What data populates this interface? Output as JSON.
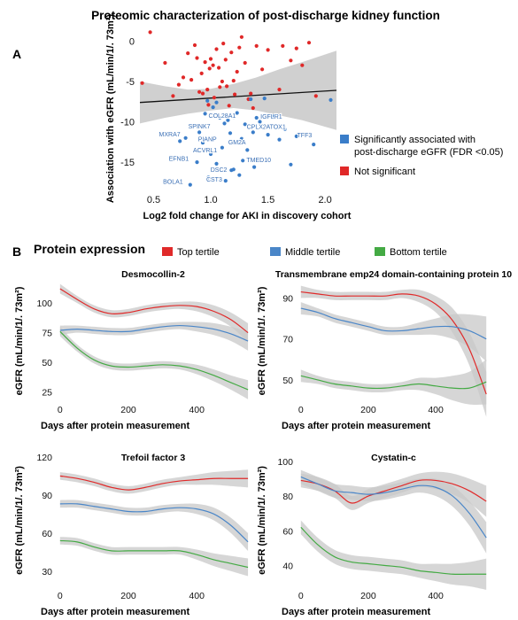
{
  "figure": {
    "title": "Proteomic characterization of post-discharge kidney function",
    "panel_a_letter": "A",
    "panel_b_letter": "B",
    "panel_b_heading": "Protein expression"
  },
  "colors": {
    "sig": "#3a7dc9",
    "nonsig": "#e02828",
    "top": "#e02a2a",
    "middle": "#4a86c8",
    "bottom": "#44aa44",
    "band": "#c8c8c8"
  },
  "chart_data": [
    {
      "type": "scatter",
      "title": "",
      "xlabel": "Log2 fold change for AKI in discovery cohort",
      "ylabel": "Association with eGFR (mL/min/1/. 73m²)",
      "xlim": [
        0.38,
        2.1
      ],
      "ylim": [
        -18.5,
        1.8
      ],
      "xticks": [
        0.5,
        1.0,
        1.5,
        2.0
      ],
      "xtick_labels": [
        "0.5",
        "1.0",
        "1.5",
        "2.0"
      ],
      "yticks": [
        0,
        -5,
        -10,
        -15
      ],
      "ytick_labels": [
        "0",
        "-5",
        "-10",
        "-15"
      ],
      "legend": [
        {
          "label": "Significantly associated with post-discharge eGFR (FDR <0.05)",
          "line1": "Significantly associated with",
          "line2": "post-discharge eGFR (FDR <0.05)",
          "color_key": "sig"
        },
        {
          "label": "Not significant",
          "line1": "Not significant",
          "line2": "",
          "color_key": "nonsig"
        }
      ],
      "fit_line": {
        "x": [
          0.38,
          2.1
        ],
        "y": [
          -7.6,
          -6.1
        ]
      },
      "band": {
        "x": [
          0.38,
          0.6,
          0.8,
          1.0,
          1.2,
          1.4,
          1.6,
          1.8,
          2.1
        ],
        "upper": [
          -5.0,
          -5.6,
          -6.0,
          -5.9,
          -5.3,
          -4.5,
          -3.5,
          -2.6,
          -1.2
        ],
        "lower": [
          -10.2,
          -9.5,
          -9.0,
          -8.6,
          -8.3,
          -8.6,
          -9.2,
          -9.8,
          -11.0
        ]
      },
      "series": [
        {
          "name": "Not significant",
          "color_key": "nonsig",
          "points": [
            [
              0.4,
              -5.2
            ],
            [
              0.47,
              1.1
            ],
            [
              0.6,
              -2.7
            ],
            [
              0.67,
              -6.8
            ],
            [
              0.72,
              -5.4
            ],
            [
              0.76,
              -4.5
            ],
            [
              0.8,
              -1.5
            ],
            [
              0.83,
              -4.8
            ],
            [
              0.86,
              -0.5
            ],
            [
              0.88,
              -2.1
            ],
            [
              0.9,
              -6.3
            ],
            [
              0.92,
              -4.0
            ],
            [
              0.93,
              -6.5
            ],
            [
              0.95,
              -2.6
            ],
            [
              0.97,
              -6.0
            ],
            [
              0.98,
              -7.9
            ],
            [
              0.99,
              -3.4
            ],
            [
              1.0,
              -2.2
            ],
            [
              1.02,
              -3.0
            ],
            [
              1.03,
              -7.0
            ],
            [
              1.05,
              -1.0
            ],
            [
              1.07,
              -3.3
            ],
            [
              1.08,
              -5.7
            ],
            [
              1.1,
              -5.0
            ],
            [
              1.11,
              -0.3
            ],
            [
              1.13,
              -2.3
            ],
            [
              1.14,
              -5.6
            ],
            [
              1.16,
              -8.0
            ],
            [
              1.18,
              -1.4
            ],
            [
              1.2,
              -4.9
            ],
            [
              1.21,
              -6.6
            ],
            [
              1.23,
              -3.8
            ],
            [
              1.25,
              -0.8
            ],
            [
              1.27,
              0.5
            ],
            [
              1.3,
              -2.7
            ],
            [
              1.33,
              -7.2
            ],
            [
              1.35,
              -6.5
            ],
            [
              1.37,
              -8.3
            ],
            [
              1.4,
              -0.6
            ],
            [
              1.45,
              -3.5
            ],
            [
              1.5,
              -1.1
            ],
            [
              1.6,
              -6.0
            ],
            [
              1.63,
              -0.6
            ],
            [
              1.7,
              -2.4
            ],
            [
              1.75,
              -0.9
            ],
            [
              1.8,
              -3.0
            ],
            [
              1.86,
              -0.2
            ],
            [
              1.92,
              -6.8
            ]
          ]
        },
        {
          "name": "Significantly associated with post-discharge eGFR (FDR <0.05)",
          "color_key": "sig",
          "points": [
            [
              0.97,
              -7.4
            ],
            [
              1.02,
              -8.2
            ],
            [
              1.05,
              -7.6
            ],
            [
              1.08,
              -9.5
            ],
            [
              1.12,
              -10.2
            ],
            [
              1.15,
              -9.8
            ],
            [
              1.17,
              -11.4
            ],
            [
              1.2,
              -9.4
            ],
            [
              1.23,
              -8.9
            ],
            [
              1.27,
              -12.1
            ],
            [
              1.3,
              -10.3
            ],
            [
              1.32,
              -13.5
            ],
            [
              1.35,
              -7.2
            ],
            [
              1.37,
              -11.3
            ],
            [
              1.4,
              -9.5
            ],
            [
              1.43,
              -10.0
            ],
            [
              1.47,
              -7.1
            ],
            [
              1.5,
              -11.6
            ],
            [
              1.55,
              -9.3
            ],
            [
              1.6,
              -12.2
            ],
            [
              1.65,
              -10.9
            ],
            [
              1.7,
              -15.3
            ],
            [
              1.75,
              -11.8
            ],
            [
              1.9,
              -12.8
            ],
            [
              2.05,
              -7.3
            ],
            [
              0.88,
              -15.0
            ],
            [
              0.9,
              -11.3
            ],
            [
              0.93,
              -12.6
            ],
            [
              1.0,
              -14.0
            ],
            [
              1.1,
              -13.2
            ],
            [
              1.2,
              -15.9
            ],
            [
              1.25,
              -16.6
            ],
            [
              0.98,
              -16.9
            ],
            [
              0.82,
              -17.8
            ],
            [
              0.78,
              -12.0
            ],
            [
              0.73,
              -12.4
            ],
            [
              1.28,
              -14.8
            ],
            [
              1.38,
              -15.6
            ],
            [
              1.13,
              -17.3
            ],
            [
              1.18,
              -16.0
            ],
            [
              1.05,
              -15.2
            ],
            [
              0.95,
              -9.0
            ]
          ]
        }
      ],
      "gene_labels": [
        {
          "text": "COL28A1",
          "x": 1.1,
          "y": -9.5
        },
        {
          "text": "IGFLR1",
          "x": 1.53,
          "y": -9.6
        },
        {
          "text": "SPINK7",
          "x": 0.9,
          "y": -10.8
        },
        {
          "text": "CPLX2",
          "x": 1.4,
          "y": -10.9
        },
        {
          "text": "ATOX1",
          "x": 1.57,
          "y": -10.9
        },
        {
          "text": "MXRA7",
          "x": 0.64,
          "y": -11.8
        },
        {
          "text": "TFF3",
          "x": 1.82,
          "y": -11.9
        },
        {
          "text": "PIANP",
          "x": 0.97,
          "y": -12.4
        },
        {
          "text": "GM2A",
          "x": 1.23,
          "y": -12.8
        },
        {
          "text": "ACVRL1",
          "x": 0.95,
          "y": -13.8
        },
        {
          "text": "EFNB1",
          "x": 0.72,
          "y": -14.8
        },
        {
          "text": "TMED10",
          "x": 1.42,
          "y": -15.0
        },
        {
          "text": "DSC2",
          "x": 1.07,
          "y": -16.2
        },
        {
          "text": "CST3",
          "x": 1.03,
          "y": -17.4
        },
        {
          "text": "BOLA1",
          "x": 0.67,
          "y": -17.7
        }
      ]
    },
    {
      "type": "line",
      "title": "Desmocollin-2",
      "xlabel": "Days after protein measurement",
      "ylabel": "eGFR (mL/min/1/. 73m²)",
      "xlim": [
        -10,
        555
      ],
      "ylim": [
        18,
        118
      ],
      "xticks": [
        0,
        200,
        400
      ],
      "yticks": [
        100,
        75,
        50,
        25
      ],
      "x": [
        0,
        50,
        100,
        150,
        200,
        250,
        300,
        350,
        400,
        450,
        500,
        550
      ],
      "series": [
        {
          "name": "Top tertile",
          "color_key": "top",
          "values": [
            112,
            103,
            95,
            91,
            92,
            95,
            97,
            98,
            97,
            93,
            86,
            75
          ],
          "band": [
            4,
            3,
            3,
            3,
            3,
            3,
            3,
            3,
            4,
            5,
            6,
            8
          ]
        },
        {
          "name": "Middle tertile",
          "color_key": "middle",
          "values": [
            77,
            78,
            77,
            76,
            76,
            78,
            80,
            81,
            80,
            78,
            74,
            68
          ],
          "band": [
            4,
            3,
            3,
            3,
            3,
            3,
            3,
            3,
            4,
            5,
            6,
            8
          ]
        },
        {
          "name": "Bottom tertile",
          "color_key": "bottom",
          "values": [
            76,
            62,
            52,
            47,
            46,
            47,
            48,
            47,
            44,
            39,
            33,
            27
          ],
          "band": [
            4,
            3,
            3,
            3,
            3,
            3,
            3,
            3,
            4,
            5,
            6,
            8
          ]
        }
      ]
    },
    {
      "type": "line",
      "title": "Transmembrane emp24 domain-containing protein 10",
      "xlabel": "Days after protein measurement",
      "ylabel": "eGFR (mL/min/1/. 73m²)",
      "xlim": [
        -10,
        560
      ],
      "ylim": [
        40,
        98
      ],
      "xticks": [
        0,
        200,
        400
      ],
      "yticks": [
        90,
        70,
        50
      ],
      "x": [
        0,
        50,
        100,
        150,
        200,
        250,
        300,
        350,
        400,
        450,
        500,
        550
      ],
      "series": [
        {
          "name": "Top tertile",
          "color_key": "top",
          "values": [
            93,
            92,
            91,
            91,
            91,
            91,
            92,
            91,
            87,
            79,
            65,
            43
          ],
          "band": [
            3,
            2,
            2,
            2,
            2,
            2,
            2,
            3,
            4,
            6,
            8,
            11
          ]
        },
        {
          "name": "Middle tertile",
          "color_key": "middle",
          "values": [
            85,
            83,
            80,
            78,
            76,
            74,
            74,
            75,
            76,
            76,
            74,
            70
          ],
          "band": [
            3,
            2,
            2,
            2,
            2,
            2,
            2,
            3,
            4,
            6,
            8,
            11
          ]
        },
        {
          "name": "Bottom tertile",
          "color_key": "bottom",
          "values": [
            52,
            50,
            48,
            47,
            46,
            46,
            47,
            48,
            47,
            46,
            46,
            49
          ],
          "band": [
            3,
            2,
            2,
            2,
            2,
            2,
            2,
            3,
            4,
            6,
            8,
            11
          ]
        }
      ]
    },
    {
      "type": "line",
      "title": "Trefoil factor 3",
      "xlabel": "Days after protein measurement",
      "ylabel": "eGFR (mL/min/1/. 73m²)",
      "xlim": [
        -10,
        555
      ],
      "ylim": [
        18,
        122
      ],
      "xticks": [
        0,
        200,
        400
      ],
      "yticks": [
        120,
        90,
        60,
        30
      ],
      "x": [
        0,
        50,
        100,
        150,
        200,
        250,
        300,
        350,
        400,
        450,
        500,
        550
      ],
      "series": [
        {
          "name": "Top tertile",
          "color_key": "top",
          "values": [
            105,
            103,
            100,
            96,
            94,
            96,
            99,
            101,
            102,
            103,
            103,
            103
          ],
          "band": [
            3,
            3,
            3,
            3,
            3,
            3,
            3,
            3,
            4,
            5,
            6,
            7
          ]
        },
        {
          "name": "Middle tertile",
          "color_key": "middle",
          "values": [
            83,
            83,
            81,
            79,
            77,
            77,
            79,
            80,
            79,
            75,
            66,
            53
          ],
          "band": [
            3,
            3,
            3,
            3,
            3,
            3,
            3,
            3,
            4,
            5,
            6,
            7
          ]
        },
        {
          "name": "Bottom tertile",
          "color_key": "bottom",
          "values": [
            54,
            53,
            49,
            46,
            46,
            46,
            46,
            46,
            43,
            39,
            36,
            33
          ],
          "band": [
            3,
            3,
            3,
            3,
            3,
            3,
            3,
            3,
            4,
            5,
            6,
            7
          ]
        }
      ]
    },
    {
      "type": "line",
      "title": "Cystatin-c",
      "xlabel": "Days after protein measurement",
      "ylabel": "eGFR (mL/min/1/. 73m²)",
      "xlim": [
        -10,
        560
      ],
      "ylim": [
        28,
        104
      ],
      "xticks": [
        0,
        200,
        400
      ],
      "yticks": [
        100,
        80,
        60,
        40
      ],
      "x": [
        0,
        50,
        100,
        150,
        200,
        250,
        300,
        350,
        400,
        450,
        500,
        550
      ],
      "series": [
        {
          "name": "Top tertile",
          "color_key": "top",
          "values": [
            89,
            87,
            83,
            76,
            80,
            83,
            86,
            89,
            89,
            87,
            83,
            77
          ],
          "band": [
            4,
            4,
            4,
            4,
            4,
            4,
            4,
            4,
            5,
            6,
            7,
            9
          ]
        },
        {
          "name": "Middle tertile",
          "color_key": "middle",
          "values": [
            91,
            87,
            83,
            82,
            81,
            82,
            84,
            86,
            85,
            80,
            70,
            56
          ],
          "band": [
            4,
            4,
            4,
            4,
            4,
            4,
            4,
            4,
            5,
            6,
            7,
            9
          ]
        },
        {
          "name": "Bottom tertile",
          "color_key": "bottom",
          "values": [
            62,
            52,
            45,
            42,
            41,
            40,
            39,
            37,
            36,
            35,
            35,
            35
          ],
          "band": [
            4,
            4,
            4,
            4,
            4,
            4,
            4,
            4,
            5,
            6,
            7,
            9
          ]
        }
      ]
    }
  ],
  "tertile_legend": [
    {
      "label": "Top tertile",
      "color_key": "top"
    },
    {
      "label": "Middle tertile",
      "color_key": "middle"
    },
    {
      "label": "Bottom tertile",
      "color_key": "bottom"
    }
  ]
}
